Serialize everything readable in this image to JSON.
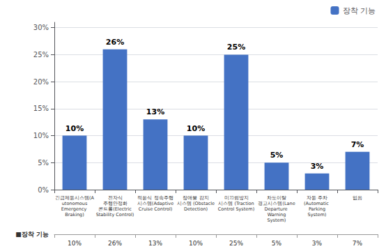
{
  "chart_data": {
    "type": "bar",
    "categories": [
      "긴급제동시스템(A\nutonomous\nEmergency Braking)",
      "전자식\n주행안정화\n콘트롤(Electric\nStability Control)",
      "적응식 정속주행\n시스템(Adaptive\nCruise Control)",
      "장애물 감지\n시스템 (Obstacle\nDetection)",
      "미끄럼방지\n시스템 (Traction\nControl System)",
      "차도이탈\n경고시스템(Lane\nDeparture Warning\nSystem)",
      "자동 주차\n(Automatic Parking\nSystem)",
      "없음"
    ],
    "series": [
      {
        "name": "장착 기능",
        "color": "#4472C4",
        "values": [
          10,
          26,
          13,
          10,
          25,
          5,
          3,
          7
        ],
        "value_labels": [
          "10%",
          "26%",
          "13%",
          "10%",
          "25%",
          "5%",
          "3%",
          "7%"
        ]
      }
    ],
    "data_labels": true,
    "ylim": [
      0,
      31
    ],
    "yticks": [
      {
        "value": 0,
        "label": "0%"
      },
      {
        "value": 5,
        "label": "5%"
      },
      {
        "value": 10,
        "label": "10%"
      },
      {
        "value": 15,
        "label": "15%"
      },
      {
        "value": 20,
        "label": "20%"
      },
      {
        "value": 25,
        "label": "25%"
      },
      {
        "value": 30,
        "label": "30%"
      }
    ],
    "grid": true,
    "legend": "upper right",
    "table": {
      "row_label": "■장착 기능",
      "cells": [
        "10%",
        "26%",
        "13%",
        "10%",
        "25%",
        "5%",
        "3%",
        "7%"
      ]
    }
  }
}
